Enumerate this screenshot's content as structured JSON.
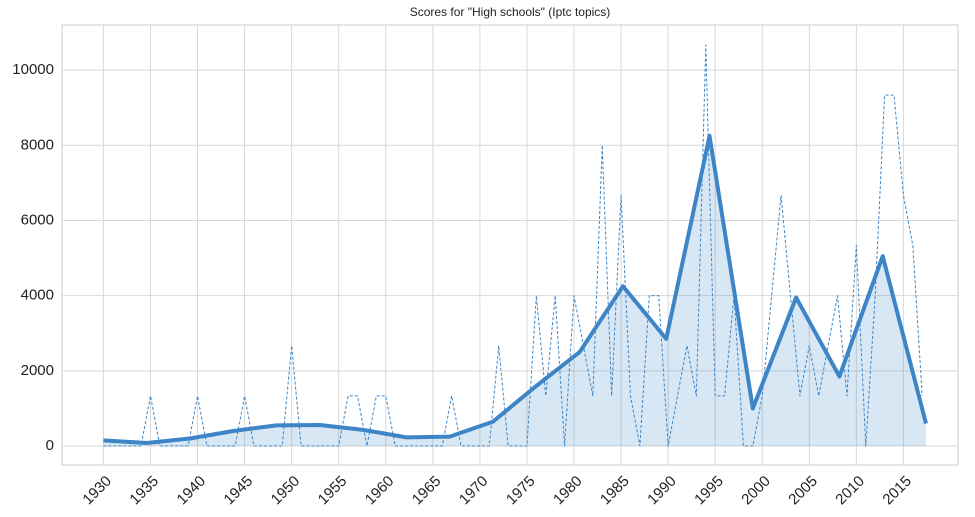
{
  "chart_data": {
    "type": "line",
    "title": "Scores for \"High schools\" (Iptc topics)",
    "xlim": [
      1925.6,
      2020.8
    ],
    "ylim": [
      -505,
      11200
    ],
    "xticks": [
      1930,
      1935,
      1940,
      1945,
      1950,
      1955,
      1960,
      1965,
      1970,
      1975,
      1980,
      1985,
      1990,
      1995,
      2000,
      2005,
      2010,
      2015
    ],
    "yticks": [
      0,
      2000,
      4000,
      6000,
      8000,
      10000
    ],
    "grid": true,
    "series": [
      {
        "color": "#3d85c6",
        "style": "solid",
        "fill": true,
        "x": [
          1930,
          1934.6,
          1939.2,
          1943.8,
          1948.4,
          1953,
          1957.6,
          1962.2,
          1966.8,
          1971.4,
          1976,
          1980.6,
          1985.2,
          1989.8,
          1994.4,
          1999,
          2003.6,
          2008.2,
          2012.8,
          2017.4
        ],
        "values": [
          150,
          80,
          200,
          400,
          550,
          560,
          430,
          230,
          250,
          650,
          1600,
          2500,
          4250,
          2850,
          8250,
          1000,
          3950,
          1850,
          5050,
          600
        ]
      },
      {
        "color": "#3d85c6",
        "style": "dashed",
        "fill": false,
        "x": [
          1930,
          1931,
          1932,
          1933,
          1934,
          1935,
          1936,
          1937,
          1938,
          1939,
          1940,
          1941,
          1942,
          1943,
          1944,
          1945,
          1946,
          1947,
          1948,
          1949,
          1950,
          1951,
          1952,
          1953,
          1954,
          1955,
          1956,
          1957,
          1958,
          1959,
          1960,
          1961,
          1962,
          1963,
          1964,
          1965,
          1966,
          1967,
          1968,
          1969,
          1970,
          1971,
          1972,
          1973,
          1974,
          1975,
          1976,
          1977,
          1978,
          1979,
          1980,
          1981,
          1982,
          1983,
          1984,
          1985,
          1986,
          1987,
          1988,
          1989,
          1990,
          1991,
          1992,
          1993,
          1994,
          1995,
          1996,
          1997,
          1998,
          1999,
          2000,
          2001,
          2002,
          2003,
          2004,
          2005,
          2006,
          2007,
          2008,
          2009,
          2010,
          2011,
          2012,
          2013,
          2014,
          2015,
          2016,
          2017
        ],
        "values": [
          0,
          0,
          0,
          0,
          0,
          1333,
          0,
          0,
          0,
          0,
          1333,
          0,
          0,
          0,
          0,
          1333,
          0,
          0,
          0,
          0,
          2667,
          0,
          0,
          0,
          0,
          0,
          1333,
          1333,
          0,
          1333,
          1333,
          0,
          0,
          0,
          0,
          0,
          0,
          1333,
          0,
          0,
          0,
          0,
          2667,
          0,
          0,
          0,
          4000,
          1333,
          4000,
          0,
          4000,
          2667,
          1333,
          8000,
          1333,
          6667,
          1333,
          0,
          4000,
          4000,
          0,
          1333,
          2667,
          1333,
          10667,
          1333,
          1333,
          4000,
          0,
          0,
          1333,
          4000,
          6667,
          4000,
          1333,
          2667,
          1333,
          2667,
          4000,
          1333,
          5333,
          0,
          4000,
          9333,
          9333,
          6667,
          5333,
          1333
        ]
      }
    ]
  }
}
